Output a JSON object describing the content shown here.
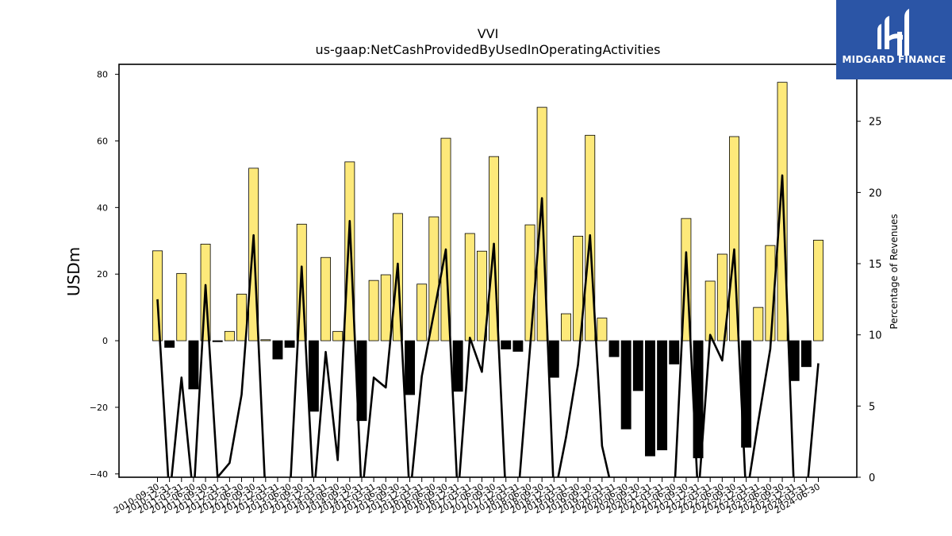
{
  "chart_data": {
    "type": "bar",
    "title": "VVI",
    "subtitle": "us-gaap:NetCashProvidedByUsedInOperatingActivities",
    "ylabel": "USDm",
    "y2label": "Percentage of Revenues",
    "ylim": [
      -41,
      83
    ],
    "y2lim": [
      0,
      29
    ],
    "yticks": [
      -40,
      -20,
      0,
      20,
      40,
      60,
      80
    ],
    "y2ticks": [
      0,
      5,
      10,
      15,
      20,
      25
    ],
    "grid": false,
    "categories": [
      "2010-09-30",
      "2010-12-31",
      "2011-03-31",
      "2011-06-30",
      "2011-09-30",
      "2011-12-31",
      "2012-03-31",
      "2012-06-30",
      "2012-09-30",
      "2012-12-31",
      "2013-03-31",
      "2013-06-30",
      "2013-09-30",
      "2013-12-31",
      "2014-03-31",
      "2014-06-30",
      "2014-09-30",
      "2014-12-31",
      "2015-03-31",
      "2015-06-30",
      "2015-09-30",
      "2015-12-31",
      "2016-03-31",
      "2016-06-30",
      "2016-09-30",
      "2016-12-31",
      "2017-03-31",
      "2017-06-30",
      "2017-09-30",
      "2017-12-31",
      "2018-03-31",
      "2018-06-30",
      "2018-09-30",
      "2018-12-31",
      "2019-03-31",
      "2019-06-30",
      "2019-09-30",
      "2019-12-31",
      "2020-03-31",
      "2020-06-30",
      "2020-09-30",
      "2020-12-31",
      "2021-03-31",
      "2021-06-30",
      "2021-09-30",
      "2021-12-31",
      "2022-03-31",
      "2022-06-30",
      "2022-09-30",
      "2022-12-31",
      "2023-03-31",
      "2023-06-30",
      "2023-09-30",
      "2023-12-31",
      "2024-03-31",
      "2024-06-30"
    ],
    "series": [
      {
        "kind": "bar",
        "values": [
          27,
          -2,
          20.2,
          -14.5,
          29,
          -0.3,
          2.8,
          14,
          51.8,
          0.3,
          -5.5,
          -2,
          35,
          -21.2,
          25,
          2.8,
          53.7,
          -24,
          18.1,
          19.8,
          38.2,
          -16.2,
          17,
          37.2,
          60.8,
          -15.2,
          32.2,
          26.9,
          55.3,
          -2.5,
          -3.2,
          34.8,
          70.1,
          -11,
          8.1,
          31.4,
          61.7,
          6.8,
          -4.8,
          -26.5,
          -15,
          -34.6,
          -32.8,
          -7,
          36.7,
          -35.2,
          17.9,
          26,
          61.3,
          -32,
          10,
          28.6,
          77.6,
          -12,
          -7.8,
          30.2
        ]
      },
      {
        "kind": "line",
        "values": [
          12.5,
          -1.5,
          7,
          -1.5,
          13.5,
          0,
          1,
          5.8,
          17,
          -1.5,
          -1.5,
          -1.5,
          14.8,
          -1.5,
          8.8,
          1.2,
          18,
          -1.5,
          7,
          6.3,
          15,
          -1.5,
          7.1,
          11.5,
          16,
          -1.5,
          9.8,
          7.4,
          16.4,
          -1.5,
          -1.5,
          9,
          19.6,
          -1.5,
          2.8,
          7.9,
          17,
          2.2,
          -1.5,
          -1.5,
          -1.5,
          -1.5,
          -1.5,
          -1.5,
          15.8,
          -1.5,
          10,
          8.2,
          16,
          -1.5,
          3.9,
          9,
          21.2,
          -1.5,
          -1.5,
          8
        ]
      }
    ]
  },
  "colors": {
    "bar_positive": "#fde97a",
    "bar_negative": "#000000",
    "line": "#000000"
  },
  "logo": {
    "text": "MIDGARD FINANCE",
    "icon": "midgard-logo-icon"
  }
}
